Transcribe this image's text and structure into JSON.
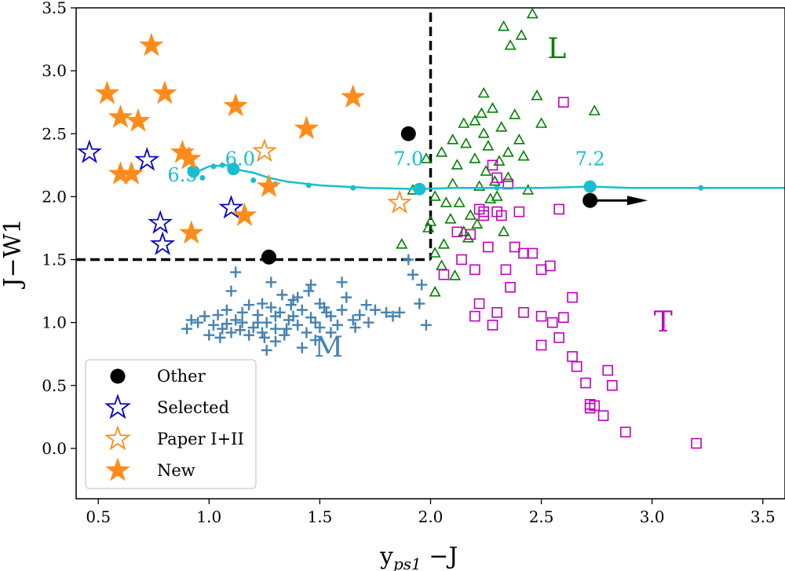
{
  "chart_data": {
    "type": "scatter",
    "title": "",
    "xlabel_main": "y",
    "xlabel_sub": "ps1",
    "xlabel_tail": " −J",
    "ylabel": "J−W1",
    "xlim": [
      0.4,
      3.6
    ],
    "ylim": [
      -0.4,
      3.5
    ],
    "xticks": [
      0.5,
      1.0,
      1.5,
      2.0,
      2.5,
      3.0,
      3.5
    ],
    "yticks": [
      0.0,
      0.5,
      1.0,
      1.5,
      2.0,
      2.5,
      3.0,
      3.5
    ],
    "xtick_labels": [
      "0.5",
      "1.0",
      "1.5",
      "2.0",
      "2.5",
      "3.0",
      "3.5"
    ],
    "ytick_labels": [
      "0.0",
      "0.5",
      "1.0",
      "1.5",
      "2.0",
      "2.5",
      "3.0",
      "3.5"
    ],
    "colors": {
      "M": "#4682b4",
      "L": "#008000",
      "T": "#bf00bf",
      "track": "#17becf",
      "other": "#000000",
      "selected": "#0000cc",
      "paper": "#ff8c1a",
      "new": "#ff8c1a"
    },
    "series": {
      "M": [
        [
          1.22,
          1.0
        ],
        [
          1.3,
          1.05
        ],
        [
          1.42,
          1.1
        ],
        [
          1.35,
          0.95
        ],
        [
          1.18,
          0.9
        ],
        [
          1.48,
          1.0
        ],
        [
          1.55,
          1.05
        ],
        [
          1.12,
          1.02
        ],
        [
          1.06,
          0.95
        ],
        [
          1.28,
          1.12
        ],
        [
          1.38,
          1.18
        ],
        [
          1.25,
          0.88
        ],
        [
          1.5,
          0.96
        ],
        [
          1.6,
          1.1
        ],
        [
          1.65,
          1.02
        ],
        [
          1.72,
          1.0
        ],
        [
          1.8,
          1.08
        ],
        [
          1.4,
          1.2
        ],
        [
          1.33,
          1.22
        ],
        [
          1.45,
          1.25
        ],
        [
          1.15,
          1.08
        ],
        [
          1.2,
          0.96
        ],
        [
          1.1,
          0.92
        ],
        [
          1.02,
          0.98
        ],
        [
          1.0,
          0.9
        ],
        [
          0.98,
          1.05
        ],
        [
          0.95,
          1.0
        ],
        [
          1.08,
          1.1
        ],
        [
          1.24,
          1.15
        ],
        [
          1.36,
          1.02
        ],
        [
          1.44,
          0.92
        ],
        [
          1.52,
          1.12
        ],
        [
          1.58,
          0.98
        ],
        [
          1.68,
          1.06
        ],
        [
          1.75,
          1.1
        ],
        [
          1.86,
          1.08
        ],
        [
          1.3,
          0.85
        ],
        [
          1.42,
          0.8
        ],
        [
          1.26,
          0.78
        ],
        [
          1.28,
          1.32
        ],
        [
          1.46,
          1.3
        ],
        [
          1.62,
          1.2
        ],
        [
          1.5,
          1.15
        ],
        [
          1.1,
          1.25
        ],
        [
          1.15,
          1.0
        ],
        [
          1.3,
          0.95
        ],
        [
          1.05,
          0.88
        ],
        [
          1.38,
          1.05
        ],
        [
          1.55,
          0.92
        ],
        [
          1.9,
          1.5
        ],
        [
          1.96,
          1.3
        ],
        [
          1.92,
          1.38
        ],
        [
          1.95,
          1.15
        ],
        [
          1.98,
          0.98
        ],
        [
          1.6,
          1.32
        ],
        [
          1.12,
          1.4
        ],
        [
          0.92,
          1.02
        ],
        [
          0.9,
          0.95
        ],
        [
          1.32,
          1.08
        ],
        [
          1.22,
          1.06
        ],
        [
          1.18,
          1.14
        ],
        [
          1.4,
          0.98
        ],
        [
          1.46,
          1.04
        ],
        [
          1.34,
          0.9
        ],
        [
          1.04,
          1.06
        ],
        [
          1.14,
          0.94
        ],
        [
          1.26,
          1.0
        ],
        [
          1.53,
          1.08
        ],
        [
          1.66,
          0.96
        ],
        [
          1.71,
          1.14
        ],
        [
          1.83,
          1.05
        ],
        [
          1.48,
          0.86
        ],
        [
          1.37,
          1.14
        ],
        [
          1.24,
          0.92
        ],
        [
          1.08,
          0.99
        ]
      ],
      "L": [
        [
          1.87,
          1.62
        ],
        [
          1.92,
          2.05
        ],
        [
          1.98,
          2.3
        ],
        [
          2.0,
          1.8
        ],
        [
          2.02,
          1.55
        ],
        [
          2.05,
          1.45
        ],
        [
          2.07,
          1.95
        ],
        [
          2.1,
          2.45
        ],
        [
          2.12,
          2.25
        ],
        [
          2.15,
          1.72
        ],
        [
          2.18,
          1.85
        ],
        [
          2.2,
          2.6
        ],
        [
          2.22,
          2.08
        ],
        [
          2.24,
          2.5
        ],
        [
          2.26,
          2.4
        ],
        [
          2.28,
          2.7
        ],
        [
          2.3,
          2.0
        ],
        [
          2.32,
          2.55
        ],
        [
          2.35,
          2.15
        ],
        [
          2.38,
          2.65
        ],
        [
          2.4,
          2.45
        ],
        [
          2.42,
          2.32
        ],
        [
          2.44,
          2.05
        ],
        [
          2.46,
          3.45
        ],
        [
          2.48,
          2.8
        ],
        [
          2.5,
          2.58
        ],
        [
          2.33,
          3.35
        ],
        [
          2.36,
          3.2
        ],
        [
          2.41,
          3.28
        ],
        [
          2.74,
          2.68
        ],
        [
          2.2,
          2.3
        ],
        [
          2.15,
          2.58
        ],
        [
          2.1,
          2.1
        ],
        [
          2.05,
          2.35
        ],
        [
          2.02,
          2.0
        ],
        [
          1.99,
          1.75
        ],
        [
          2.09,
          1.82
        ],
        [
          2.13,
          1.95
        ],
        [
          2.17,
          1.67
        ],
        [
          2.21,
          1.78
        ],
        [
          2.25,
          2.2
        ],
        [
          2.29,
          2.12
        ],
        [
          2.31,
          2.28
        ],
        [
          2.16,
          2.42
        ],
        [
          2.24,
          2.82
        ],
        [
          2.35,
          2.35
        ],
        [
          2.06,
          1.62
        ],
        [
          2.02,
          1.24
        ],
        [
          2.11,
          1.37
        ],
        [
          2.27,
          1.98
        ],
        [
          2.33,
          1.72
        ],
        [
          2.23,
          2.66
        ]
      ],
      "T": [
        [
          2.06,
          1.38
        ],
        [
          2.12,
          1.72
        ],
        [
          2.14,
          1.5
        ],
        [
          2.18,
          1.7
        ],
        [
          2.2,
          1.42
        ],
        [
          2.22,
          1.9
        ],
        [
          2.24,
          1.88
        ],
        [
          2.26,
          1.6
        ],
        [
          2.28,
          2.25
        ],
        [
          2.3,
          1.88
        ],
        [
          2.32,
          1.85
        ],
        [
          2.34,
          1.42
        ],
        [
          2.36,
          1.28
        ],
        [
          2.38,
          1.6
        ],
        [
          2.4,
          1.88
        ],
        [
          2.42,
          1.55
        ],
        [
          2.46,
          1.55
        ],
        [
          2.5,
          1.42
        ],
        [
          2.54,
          1.45
        ],
        [
          2.58,
          1.9
        ],
        [
          2.6,
          1.04
        ],
        [
          2.64,
          1.2
        ],
        [
          2.66,
          0.65
        ],
        [
          2.7,
          0.52
        ],
        [
          2.72,
          0.32
        ],
        [
          2.74,
          0.34
        ],
        [
          2.78,
          0.26
        ],
        [
          2.8,
          0.62
        ],
        [
          2.82,
          0.5
        ],
        [
          2.88,
          0.13
        ],
        [
          3.2,
          0.04
        ],
        [
          2.5,
          0.82
        ],
        [
          2.42,
          1.08
        ],
        [
          2.28,
          0.98
        ],
        [
          2.5,
          1.05
        ],
        [
          2.6,
          2.75
        ],
        [
          2.3,
          2.15
        ],
        [
          2.35,
          2.1
        ],
        [
          2.3,
          1.08
        ],
        [
          2.22,
          1.15
        ],
        [
          2.24,
          1.85
        ],
        [
          2.2,
          1.05
        ],
        [
          2.55,
          1.0
        ],
        [
          2.58,
          0.88
        ],
        [
          2.64,
          0.73
        ],
        [
          2.72,
          0.35
        ]
      ],
      "track": [
        [
          0.93,
          2.2
        ],
        [
          0.95,
          2.2
        ],
        [
          1.0,
          2.24
        ],
        [
          1.08,
          2.25
        ],
        [
          1.11,
          2.22
        ],
        [
          1.2,
          2.19
        ],
        [
          1.27,
          2.15
        ],
        [
          1.35,
          2.12
        ],
        [
          1.5,
          2.09
        ],
        [
          1.72,
          2.07
        ],
        [
          1.95,
          2.06
        ],
        [
          2.1,
          2.07
        ],
        [
          2.3,
          2.07
        ],
        [
          2.5,
          2.07
        ],
        [
          2.72,
          2.08
        ],
        [
          2.9,
          2.07
        ],
        [
          3.2,
          2.07
        ],
        [
          3.6,
          2.07
        ]
      ],
      "track_dots": [
        [
          0.93,
          2.2
        ],
        [
          0.97,
          2.15
        ],
        [
          1.02,
          2.24
        ],
        [
          1.06,
          2.25
        ],
        [
          1.11,
          2.22
        ],
        [
          1.2,
          2.13
        ],
        [
          1.3,
          2.1
        ],
        [
          1.45,
          2.09
        ],
        [
          1.65,
          2.07
        ],
        [
          1.95,
          2.06
        ],
        [
          2.3,
          2.07
        ],
        [
          2.72,
          2.08
        ],
        [
          3.22,
          2.07
        ]
      ],
      "track_big": [
        [
          0.93,
          2.2
        ],
        [
          1.11,
          2.22
        ],
        [
          1.95,
          2.06
        ],
        [
          2.72,
          2.08
        ]
      ],
      "other": [
        [
          1.9,
          2.5
        ],
        [
          1.27,
          1.52
        ],
        [
          2.72,
          1.97
        ]
      ],
      "selected": [
        [
          0.46,
          2.35
        ],
        [
          0.72,
          2.29
        ],
        [
          0.78,
          1.79
        ],
        [
          0.79,
          1.62
        ],
        [
          1.1,
          1.91
        ]
      ],
      "paper": [
        [
          1.25,
          2.36
        ],
        [
          1.86,
          1.95
        ]
      ],
      "new": [
        [
          0.74,
          3.2
        ],
        [
          0.54,
          2.82
        ],
        [
          0.6,
          2.63
        ],
        [
          0.68,
          2.6
        ],
        [
          0.8,
          2.82
        ],
        [
          1.12,
          2.72
        ],
        [
          0.88,
          2.35
        ],
        [
          0.91,
          2.3
        ],
        [
          0.6,
          2.18
        ],
        [
          0.65,
          2.18
        ],
        [
          1.27,
          2.08
        ],
        [
          1.44,
          2.54
        ],
        [
          1.65,
          2.79
        ],
        [
          1.16,
          1.85
        ],
        [
          0.92,
          1.71
        ]
      ]
    },
    "track_labels": [
      {
        "text": "6.5",
        "x": 0.88,
        "y": 2.12
      },
      {
        "text": "6.0",
        "x": 1.14,
        "y": 2.25
      },
      {
        "text": "7.0",
        "x": 1.9,
        "y": 2.25
      },
      {
        "text": "7.2",
        "x": 2.72,
        "y": 2.25
      }
    ],
    "class_labels": [
      {
        "text": "L",
        "x": 2.57,
        "y": 3.1,
        "key": "L"
      },
      {
        "text": "T",
        "x": 3.05,
        "y": 0.93,
        "key": "T"
      },
      {
        "text": "M",
        "x": 1.54,
        "y": 0.73,
        "key": "M"
      }
    ],
    "arrow": {
      "x0": 2.72,
      "x1": 2.98,
      "y": 1.97
    },
    "cut_lines": {
      "x_cut": 2.0,
      "y_cut": 1.5,
      "x_min": 0.4
    },
    "legend": {
      "position": "lower-left",
      "entries": [
        {
          "label": "Other",
          "marker": "circle"
        },
        {
          "label": "Selected",
          "marker": "star-open-blue"
        },
        {
          "label": "Paper I+II",
          "marker": "star-open-orange"
        },
        {
          "label": "New",
          "marker": "star-filled"
        }
      ]
    }
  }
}
